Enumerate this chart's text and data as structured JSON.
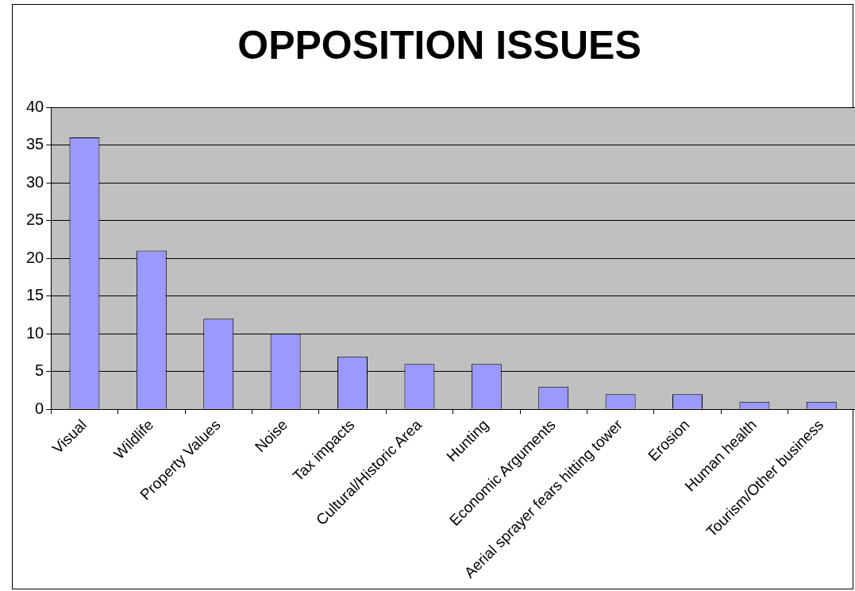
{
  "chart_data": {
    "type": "bar",
    "title": "OPPOSITION ISSUES",
    "categories": [
      "Visual",
      "Wildlife",
      "Property Values",
      "Noise",
      "Tax impacts",
      "Cultural/Historic Area",
      "Hunting",
      "Economic Arguments",
      "Aerial sprayer fears hitting tower",
      "Erosion",
      "Human health",
      "Tourism/Other business"
    ],
    "values": [
      36,
      21,
      12,
      10,
      7,
      6,
      6,
      3,
      2,
      2,
      1,
      1
    ],
    "color": "#9999ff",
    "ylim": [
      0,
      40
    ],
    "yticks": [
      0,
      5,
      10,
      15,
      20,
      25,
      30,
      35,
      40
    ],
    "grid": "y",
    "legend": false
  }
}
